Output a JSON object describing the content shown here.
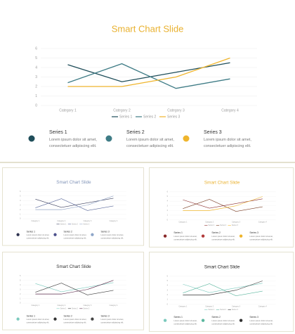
{
  "chart_data": [
    {
      "type": "line",
      "title": "Smart Chart Slide",
      "title_color": "#e9b12f",
      "categories": [
        "Category 1",
        "Category 2",
        "Category 3",
        "Category 4"
      ],
      "series": [
        {
          "name": "Series 1",
          "color": "#1f4e5a",
          "values": [
            4.3,
            2.5,
            3.5,
            4.5
          ]
        },
        {
          "name": "Series 2",
          "color": "#3f7c86",
          "values": [
            2.4,
            4.4,
            1.8,
            2.8
          ]
        },
        {
          "name": "Series 3",
          "color": "#efb52d",
          "values": [
            2,
            2,
            3,
            5
          ]
        }
      ],
      "ylim": [
        0,
        6
      ],
      "yticks": [
        0,
        1,
        2,
        3,
        4,
        5,
        6
      ],
      "grid": true,
      "notes": [
        {
          "title": "Series 1",
          "text": "Lorem ipsum dolor sit amet, consectetuer adipiscing elit.",
          "color": "#1f4e5a"
        },
        {
          "title": "Series 2",
          "text": "Lorem ipsum dolor sit amet, consectetuer adipiscing elit.",
          "color": "#3f7c86"
        },
        {
          "title": "Series 3",
          "text": "Lorem ipsum dolor sit amet, consectetuer adipiscing elit.",
          "color": "#efb52d"
        }
      ]
    },
    {
      "type": "line",
      "title": "Smart Chart Slide",
      "title_color": "#8194b8",
      "categories": [
        "Category 1",
        "Category 2",
        "Category 3",
        "Category 4"
      ],
      "series": [
        {
          "name": "Series 1",
          "color": "#3b3f5e",
          "values": [
            4.3,
            2.5,
            3.5,
            4.5
          ]
        },
        {
          "name": "Series 2",
          "color": "#5a689a",
          "values": [
            2.4,
            4.4,
            1.8,
            2.8
          ]
        },
        {
          "name": "Series 3",
          "color": "#93a5c6",
          "values": [
            2,
            2,
            3,
            5
          ]
        }
      ],
      "ylim": [
        0,
        6
      ],
      "yticks": [
        0,
        1,
        2,
        3,
        4,
        5,
        6
      ],
      "grid": true,
      "notes": [
        {
          "title": "Series 1",
          "text": "Lorem ipsum dolor sit amet, consectetuer adipiscing elit.",
          "color": "#2f3350"
        },
        {
          "title": "Series 2",
          "text": "Lorem ipsum dolor sit amet, consectetuer adipiscing elit.",
          "color": "#4c508c"
        },
        {
          "title": "Series 3",
          "text": "Lorem ipsum dolor sit amet, consectetuer adipiscing elit.",
          "color": "#8ea6c9"
        }
      ]
    },
    {
      "type": "line",
      "title": "Smart Chart Slide",
      "title_color": "#e9b12f",
      "categories": [
        "Category 1",
        "Category 2",
        "Category 3",
        "Category 4"
      ],
      "series": [
        {
          "name": "Series 1",
          "color": "#8c2e2e",
          "values": [
            4.3,
            2.5,
            3.5,
            4.5
          ]
        },
        {
          "name": "Series 2",
          "color": "#7a3d24",
          "values": [
            2.4,
            4.4,
            1.8,
            2.8
          ]
        },
        {
          "name": "Series 3",
          "color": "#efb52d",
          "values": [
            2,
            2,
            3,
            5
          ]
        }
      ],
      "ylim": [
        0,
        6
      ],
      "yticks": [
        0,
        1,
        2,
        3,
        4,
        5,
        6
      ],
      "grid": true,
      "notes": [
        {
          "title": "Series 1",
          "text": "Lorem ipsum dolor sit amet, consectetuer adipiscing elit.",
          "color": "#8a2a2a"
        },
        {
          "title": "Series 2",
          "text": "Lorem ipsum dolor sit amet, consectetuer adipiscing elit.",
          "color": "#b23b3b"
        },
        {
          "title": "Series 3",
          "text": "Lorem ipsum dolor sit amet, consectetuer adipiscing elit.",
          "color": "#efb52d"
        }
      ]
    },
    {
      "type": "line",
      "title": "Smart Chart Slide",
      "title_color": "#333333",
      "categories": [
        "Category 1",
        "Category 2",
        "Category 3",
        "Category 4"
      ],
      "series": [
        {
          "name": "Series 1",
          "color": "#7ccabe",
          "values": [
            4.3,
            2.5,
            3.5,
            4.5
          ]
        },
        {
          "name": "Series 2",
          "color": "#3c3c3c",
          "values": [
            2.4,
            4.4,
            1.8,
            2.8
          ]
        },
        {
          "name": "Series 3",
          "color": "#5a2a4a",
          "values": [
            2,
            2,
            3,
            5
          ]
        }
      ],
      "ylim": [
        0,
        6
      ],
      "yticks": [
        0,
        1,
        2,
        3,
        4,
        5,
        6
      ],
      "grid": true,
      "notes": [
        {
          "title": "Series 1",
          "text": "Lorem ipsum dolor sit amet, consectetuer adipiscing elit.",
          "color": "#7ccabe"
        },
        {
          "title": "Series 2",
          "text": "Lorem ipsum dolor sit amet, consectetuer adipiscing elit.",
          "color": "#333333"
        },
        {
          "title": "Series 3",
          "text": "Lorem ipsum dolor sit amet, consectetuer adipiscing elit.",
          "color": "#444444"
        }
      ]
    },
    {
      "type": "line",
      "title": "Smart Chart Slide",
      "title_color": "#222222",
      "categories": [
        "Category 1",
        "Category 2",
        "Category 3",
        "Category 4"
      ],
      "series": [
        {
          "name": "Series 1",
          "color": "#7ccabe",
          "values": [
            4.3,
            2.5,
            3.5,
            4.5
          ]
        },
        {
          "name": "Series 2",
          "color": "#5cb79f",
          "values": [
            2.4,
            4.4,
            1.8,
            2.8
          ]
        },
        {
          "name": "Series 3",
          "color": "#333333",
          "values": [
            2,
            2,
            3,
            5
          ]
        }
      ],
      "ylim": [
        0,
        6
      ],
      "yticks": [
        0,
        1,
        2,
        3,
        4,
        5,
        6
      ],
      "grid": true,
      "notes": [
        {
          "title": "Series 1",
          "text": "Lorem ipsum dolor sit amet, consectetuer adipiscing elit.",
          "color": "#7ccabe"
        },
        {
          "title": "Series 2",
          "text": "Lorem ipsum dolor sit amet, consectetuer adipiscing elit.",
          "color": "#5cb79f"
        },
        {
          "title": "Series 3",
          "text": "Lorem ipsum dolor sit amet, consectetuer adipiscing elit.",
          "color": "#333333"
        }
      ]
    }
  ]
}
